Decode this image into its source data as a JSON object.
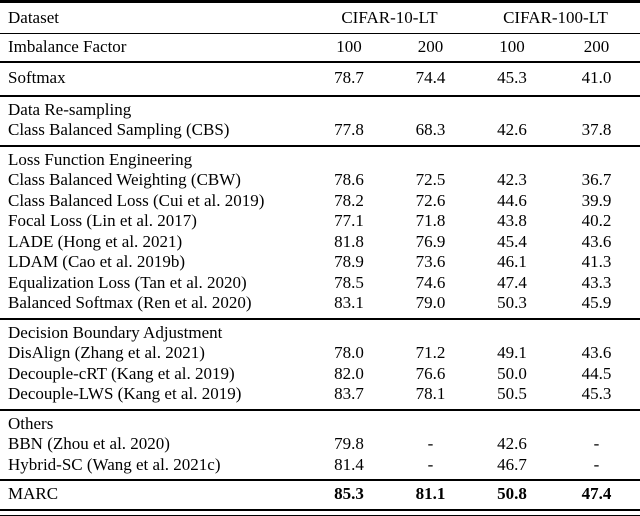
{
  "table": {
    "header": {
      "dataset_label": "Dataset",
      "group_headers": [
        "CIFAR-10-LT",
        "CIFAR-100-LT"
      ],
      "imbalance_label": "Imbalance Factor",
      "imbalance_values": [
        "100",
        "200",
        "100",
        "200"
      ]
    },
    "sections": [
      {
        "id": "baseline",
        "heading": null,
        "rows": [
          {
            "label": "Softmax",
            "values": [
              "78.7",
              "74.4",
              "45.3",
              "41.0"
            ],
            "bold": false
          }
        ]
      },
      {
        "id": "data-resampling",
        "heading": "Data Re-sampling",
        "rows": [
          {
            "label": "Class Balanced Sampling (CBS)",
            "values": [
              "77.8",
              "68.3",
              "42.6",
              "37.8"
            ],
            "bold": false
          }
        ]
      },
      {
        "id": "loss-function-engineering",
        "heading": "Loss Function Engineering",
        "rows": [
          {
            "label": "Class Balanced Weighting (CBW)",
            "values": [
              "78.6",
              "72.5",
              "42.3",
              "36.7"
            ],
            "bold": false
          },
          {
            "label": "Class Balanced Loss (Cui et al. 2019)",
            "values": [
              "78.2",
              "72.6",
              "44.6",
              "39.9"
            ],
            "bold": false
          },
          {
            "label": "Focal Loss (Lin et al. 2017)",
            "values": [
              "77.1",
              "71.8",
              "43.8",
              "40.2"
            ],
            "bold": false
          },
          {
            "label": "LADE (Hong et al. 2021)",
            "values": [
              "81.8",
              "76.9",
              "45.4",
              "43.6"
            ],
            "bold": false
          },
          {
            "label": "LDAM (Cao et al. 2019b)",
            "values": [
              "78.9",
              "73.6",
              "46.1",
              "41.3"
            ],
            "bold": false
          },
          {
            "label": "Equalization Loss (Tan et al. 2020)",
            "values": [
              "78.5",
              "74.6",
              "47.4",
              "43.3"
            ],
            "bold": false
          },
          {
            "label": "Balanced Softmax (Ren et al. 2020)",
            "values": [
              "83.1",
              "79.0",
              "50.3",
              "45.9"
            ],
            "bold": false
          }
        ]
      },
      {
        "id": "decision-boundary-adjustment",
        "heading": "Decision Boundary Adjustment",
        "rows": [
          {
            "label": "DisAlign (Zhang et al. 2021)",
            "values": [
              "78.0",
              "71.2",
              "49.1",
              "43.6"
            ],
            "bold": false
          },
          {
            "label": "Decouple-cRT (Kang et al. 2019)",
            "values": [
              "82.0",
              "76.6",
              "50.0",
              "44.5"
            ],
            "bold": false
          },
          {
            "label": "Decouple-LWS (Kang et al. 2019)",
            "values": [
              "83.7",
              "78.1",
              "50.5",
              "45.3"
            ],
            "bold": false
          }
        ]
      },
      {
        "id": "others",
        "heading": "Others",
        "rows": [
          {
            "label": "BBN (Zhou et al. 2020)",
            "values": [
              "79.8",
              "-",
              "42.6",
              "-"
            ],
            "bold": false
          },
          {
            "label": "Hybrid-SC (Wang et al. 2021c)",
            "values": [
              "81.4",
              "-",
              "46.7",
              "-"
            ],
            "bold": false
          }
        ]
      },
      {
        "id": "marc",
        "heading": null,
        "rows": [
          {
            "label": "MARC",
            "values": [
              "85.3",
              "81.1",
              "50.8",
              "47.4"
            ],
            "bold": true
          }
        ]
      }
    ]
  }
}
